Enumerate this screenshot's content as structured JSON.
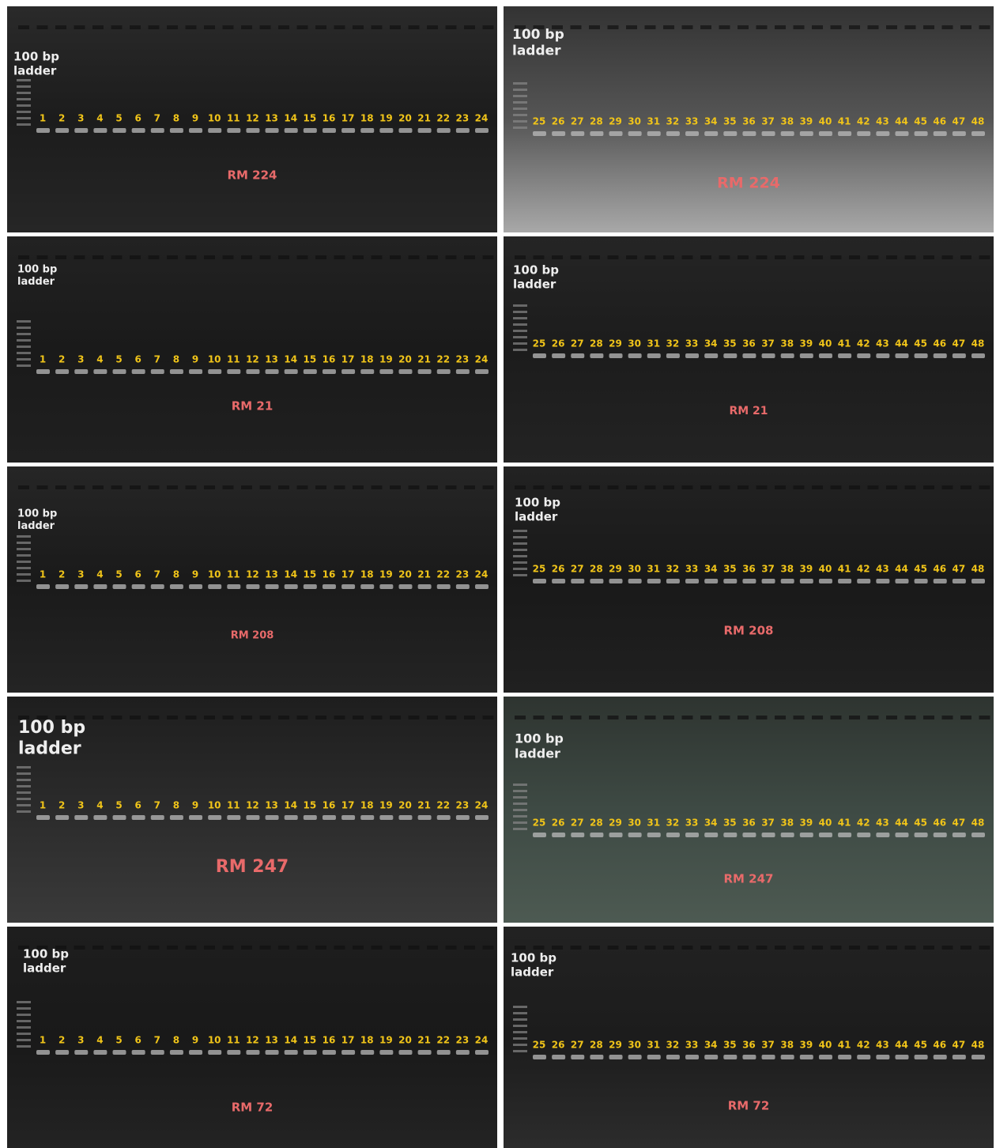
{
  "panels": [
    {
      "ladder": [
        "100 bp",
        "ladder"
      ],
      "lanes": [
        1,
        2,
        3,
        4,
        5,
        6,
        7,
        8,
        9,
        10,
        11,
        12,
        13,
        14,
        15,
        16,
        17,
        18,
        19,
        20,
        21,
        22,
        23,
        24
      ],
      "marker": "RM 224"
    },
    {
      "ladder": [
        "100 bp",
        "ladder"
      ],
      "lanes": [
        25,
        26,
        27,
        28,
        29,
        30,
        31,
        32,
        33,
        34,
        35,
        36,
        37,
        38,
        39,
        40,
        41,
        42,
        43,
        44,
        45,
        46,
        47,
        48
      ],
      "marker": "RM 224"
    },
    {
      "ladder": [
        "100 bp",
        "ladder"
      ],
      "lanes": [
        1,
        2,
        3,
        4,
        5,
        6,
        7,
        8,
        9,
        10,
        11,
        12,
        13,
        14,
        15,
        16,
        17,
        18,
        19,
        20,
        21,
        22,
        23,
        24
      ],
      "marker": "RM 21"
    },
    {
      "ladder": [
        "100 bp",
        "ladder"
      ],
      "lanes": [
        25,
        26,
        27,
        28,
        29,
        30,
        31,
        32,
        33,
        34,
        35,
        36,
        37,
        38,
        39,
        40,
        41,
        42,
        43,
        44,
        45,
        46,
        47,
        48
      ],
      "marker": "RM 21"
    },
    {
      "ladder": [
        "100 bp",
        "ladder"
      ],
      "lanes": [
        1,
        2,
        3,
        4,
        5,
        6,
        7,
        8,
        9,
        10,
        11,
        12,
        13,
        14,
        15,
        16,
        17,
        18,
        19,
        20,
        21,
        22,
        23,
        24
      ],
      "marker": "RM 208"
    },
    {
      "ladder": [
        "100 bp",
        "ladder"
      ],
      "lanes": [
        25,
        26,
        27,
        28,
        29,
        30,
        31,
        32,
        33,
        34,
        35,
        36,
        37,
        38,
        39,
        40,
        41,
        42,
        43,
        44,
        45,
        46,
        47,
        48
      ],
      "marker": "RM 208"
    },
    {
      "ladder": [
        "100 bp",
        "ladder"
      ],
      "lanes": [
        1,
        2,
        3,
        4,
        5,
        6,
        7,
        8,
        9,
        10,
        11,
        12,
        13,
        14,
        15,
        16,
        17,
        18,
        19,
        20,
        21,
        22,
        23,
        24
      ],
      "marker": "RM 247"
    },
    {
      "ladder": [
        "100 bp",
        "ladder"
      ],
      "lanes": [
        25,
        26,
        27,
        28,
        29,
        30,
        31,
        32,
        33,
        34,
        35,
        36,
        37,
        38,
        39,
        40,
        41,
        42,
        43,
        44,
        45,
        46,
        47,
        48
      ],
      "marker": "RM 247"
    },
    {
      "ladder": [
        "100 bp",
        "ladder"
      ],
      "lanes": [
        1,
        2,
        3,
        4,
        5,
        6,
        7,
        8,
        9,
        10,
        11,
        12,
        13,
        14,
        15,
        16,
        17,
        18,
        19,
        20,
        21,
        22,
        23,
        24
      ],
      "marker": "RM 72"
    },
    {
      "ladder": [
        "100 bp",
        "ladder"
      ],
      "lanes": [
        25,
        26,
        27,
        28,
        29,
        30,
        31,
        32,
        33,
        34,
        35,
        36,
        37,
        38,
        39,
        40,
        41,
        42,
        43,
        44,
        45,
        46,
        47,
        48
      ],
      "marker": "RM 72"
    }
  ]
}
